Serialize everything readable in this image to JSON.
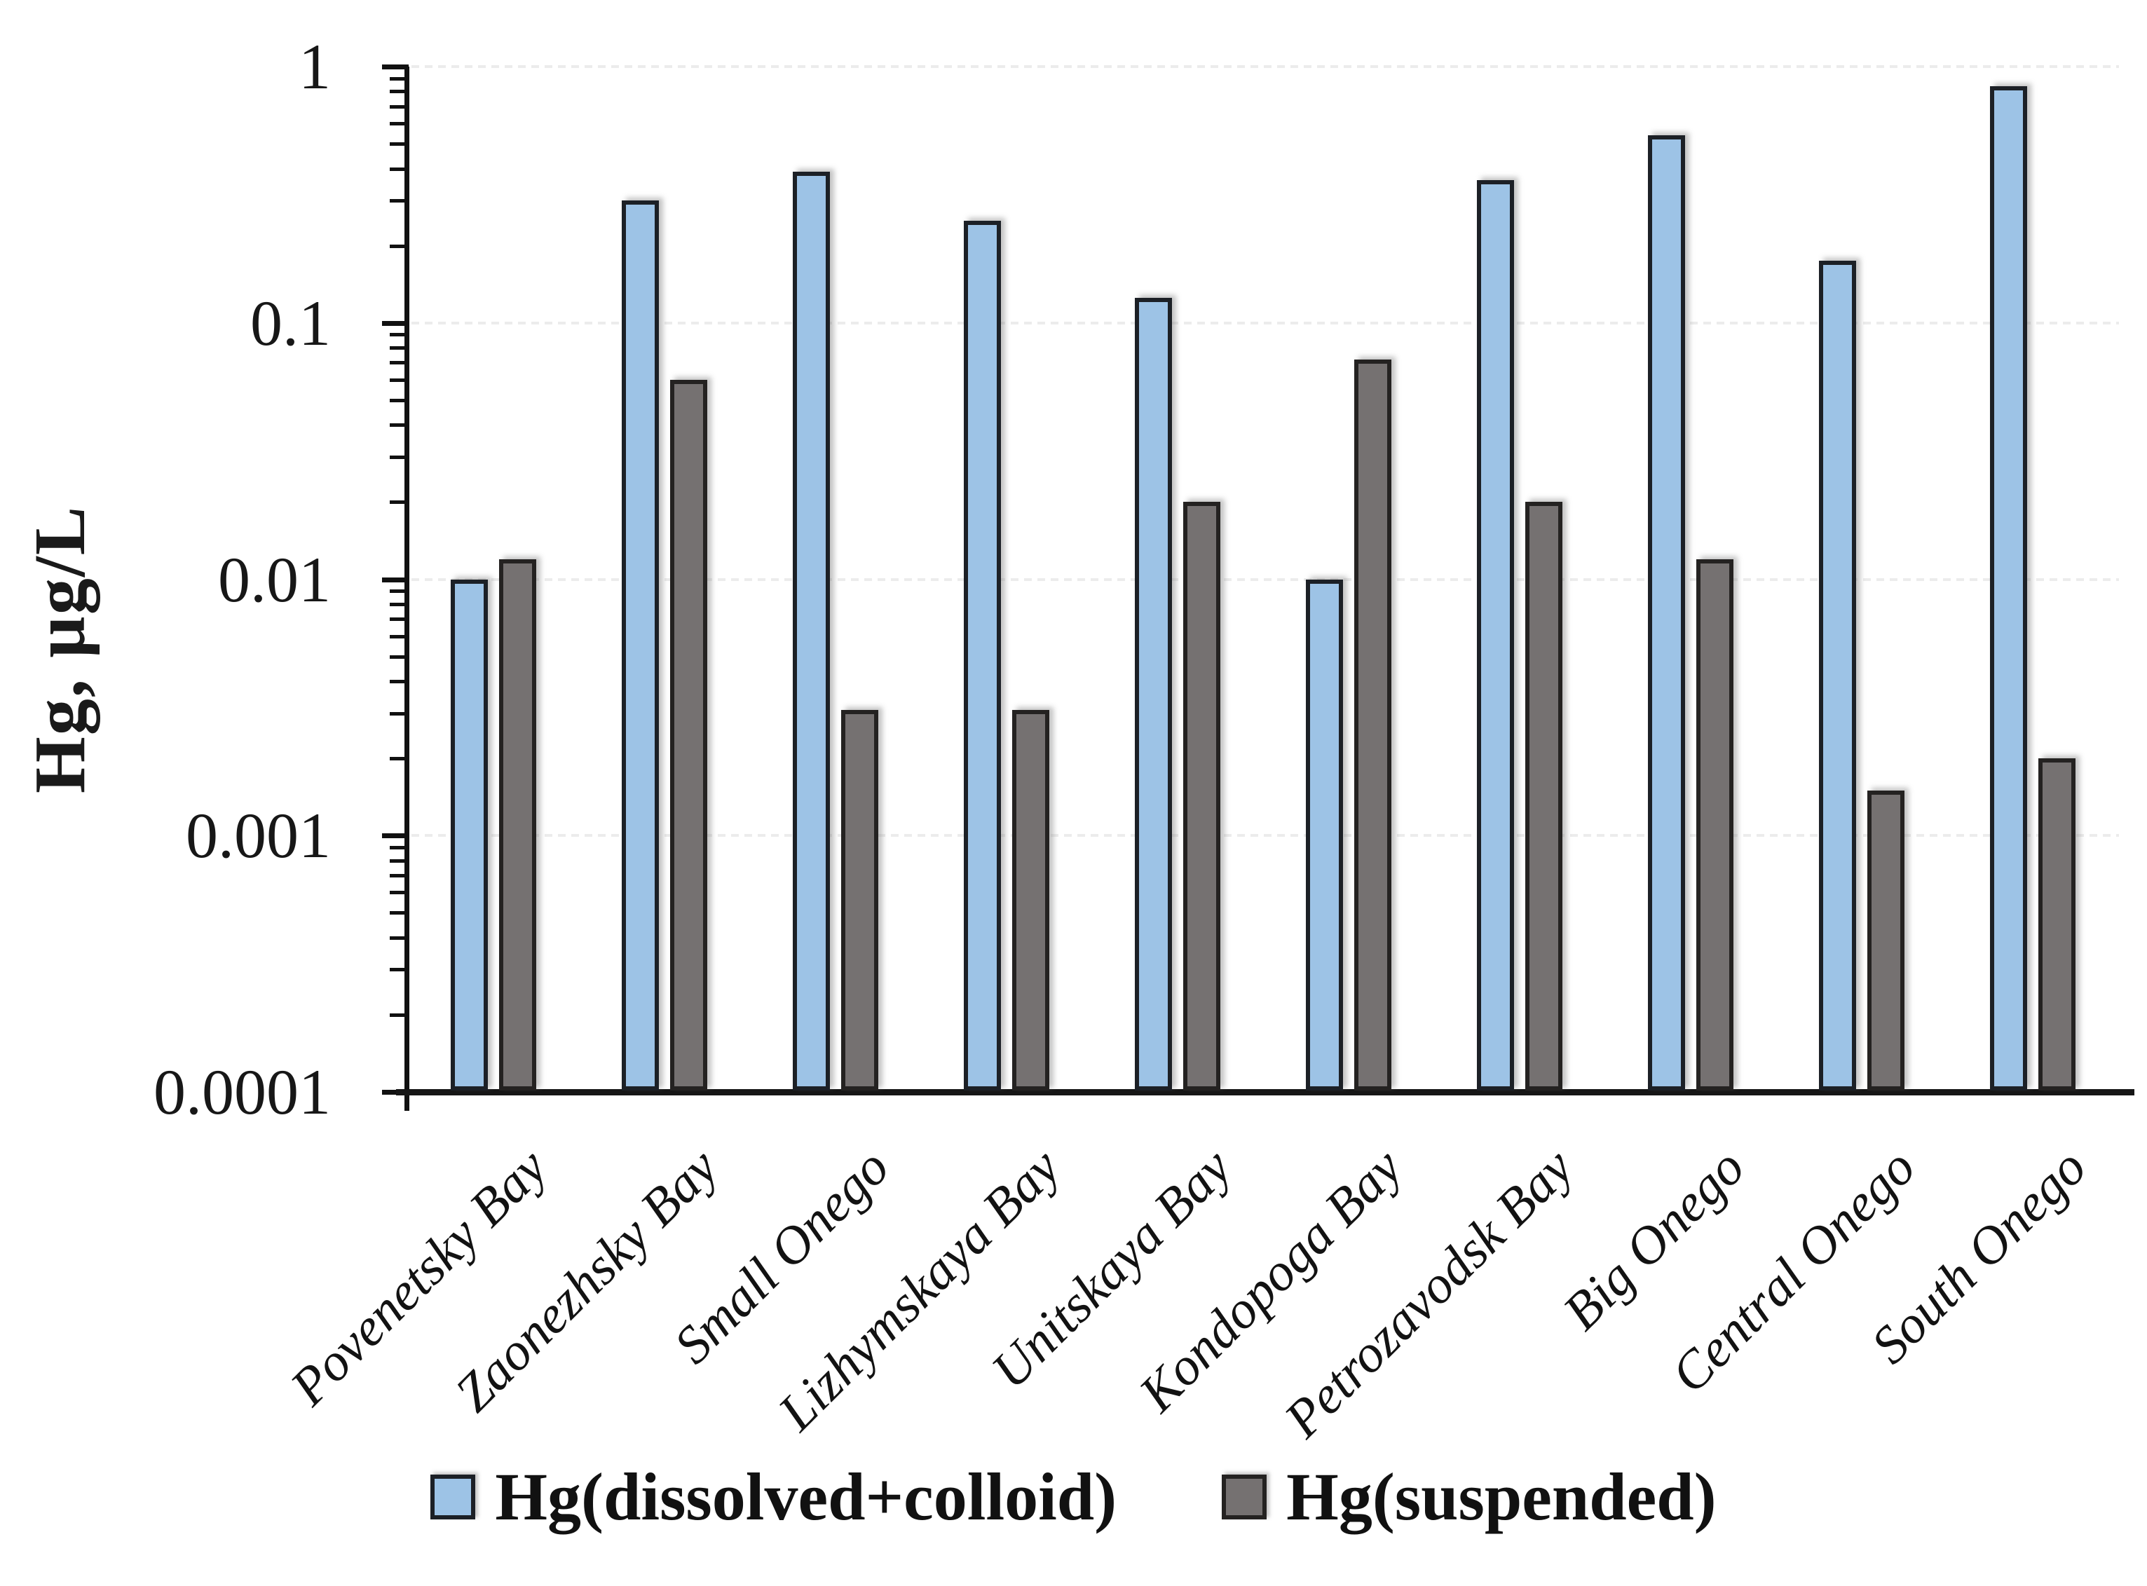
{
  "chart_data": {
    "type": "bar",
    "title": "",
    "ylabel": "Hg, µg/L",
    "xlabel": "",
    "yscale": "log",
    "ylim": [
      0.0001,
      1
    ],
    "ytick_labels": [
      "1",
      "0.1",
      "0.01",
      "0.001",
      "0.0001"
    ],
    "grid": "horizontal-dashed-decades",
    "legend_position": "bottom",
    "categories": [
      "Povenetsky Bay",
      "Zaonezhsky Bay",
      "Small Onego",
      "Lizhymskaya Bay",
      "Unitskaya Bay",
      "Kondopoga Bay",
      "Petrozavodsk Bay",
      "Big Onego",
      "Central Onego",
      "South Onego"
    ],
    "series": [
      {
        "name": "Hg(dissolved+colloid)",
        "color": "#9DC3E6",
        "border": "#1C2026",
        "values": [
          0.01,
          0.3,
          0.39,
          0.25,
          0.125,
          0.01,
          0.36,
          0.54,
          0.175,
          0.84
        ]
      },
      {
        "name": "Hg(suspended)",
        "color": "#757171",
        "border": "#242221",
        "values": [
          0.012,
          0.06,
          0.0031,
          0.0031,
          0.02,
          0.072,
          0.02,
          0.012,
          0.0015,
          0.002
        ]
      }
    ]
  }
}
